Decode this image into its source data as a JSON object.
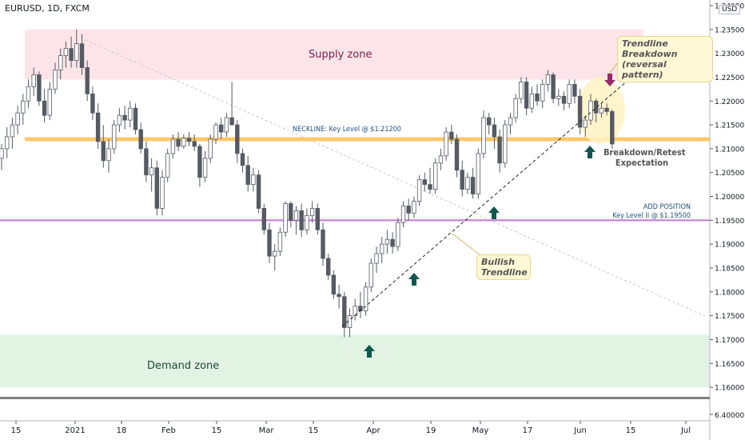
{
  "header": {
    "symbol": "EURUSD, 1D, FXCM",
    "currency": "USD"
  },
  "colors": {
    "supply_zone": "#fce4e8",
    "demand_zone": "#e2f3e4",
    "neckline": "#ffc76a",
    "add_position_line": "#c277d6",
    "candle": "#555a63",
    "arrow_up": "#10584b",
    "arrow_down": "#9b2c6b",
    "highlight_circle": "#fff3c4"
  },
  "annotations": {
    "supply_zone": "Supply zone",
    "demand_zone": "Demand zone",
    "neckline": "NECKLINE: Key Level @ $1.21200",
    "add_position_1": "ADD POSITION",
    "add_position_2": "Key Level II @ $1.19500",
    "breakdown_1": "Breakdown/Retest",
    "breakdown_2": "Expectation",
    "trendline_breakdown_1": "Trendline Breakdown",
    "trendline_breakdown_2": "(reversal pattern)",
    "bullish_1": "Bullish",
    "bullish_2": "Trendline"
  },
  "chart_data": {
    "type": "candlestick",
    "title": "EURUSD, 1D, FXCM",
    "ylim": [
      1.158,
      1.2405
    ],
    "y_ticks": [
      "1.24000",
      "1.23500",
      "1.23000",
      "1.22500",
      "1.22000",
      "1.21500",
      "1.21000",
      "1.20500",
      "1.20000",
      "1.19500",
      "1.19000",
      "1.18500",
      "1.18000",
      "1.17500",
      "1.17000",
      "1.16500",
      "1.16000"
    ],
    "x_ticks": [
      "15",
      "2021",
      "18",
      "Feb",
      "15",
      "Mar",
      "15",
      "Apr",
      "19",
      "May",
      "17",
      "Jun",
      "15",
      "Jul"
    ],
    "indicator_tick": "6.40000",
    "key_levels": {
      "neckline": 1.212,
      "add_position": 1.195
    },
    "zones": {
      "supply": [
        1.2245,
        1.235
      ],
      "demand": [
        1.16,
        1.171
      ]
    },
    "candles": [
      {
        "o": 1.208,
        "h": 1.211,
        "l": 1.2055,
        "c": 1.21
      },
      {
        "o": 1.21,
        "h": 1.2145,
        "l": 1.208,
        "c": 1.2125
      },
      {
        "o": 1.2125,
        "h": 1.2165,
        "l": 1.21,
        "c": 1.215
      },
      {
        "o": 1.215,
        "h": 1.219,
        "l": 1.213,
        "c": 1.2175
      },
      {
        "o": 1.2175,
        "h": 1.2215,
        "l": 1.215,
        "c": 1.22
      },
      {
        "o": 1.22,
        "h": 1.2245,
        "l": 1.2185,
        "c": 1.223
      },
      {
        "o": 1.223,
        "h": 1.227,
        "l": 1.221,
        "c": 1.2255
      },
      {
        "o": 1.2255,
        "h": 1.2262,
        "l": 1.219,
        "c": 1.22
      },
      {
        "o": 1.22,
        "h": 1.2225,
        "l": 1.2155,
        "c": 1.217
      },
      {
        "o": 1.217,
        "h": 1.224,
        "l": 1.216,
        "c": 1.2225
      },
      {
        "o": 1.2225,
        "h": 1.228,
        "l": 1.2215,
        "c": 1.2265
      },
      {
        "o": 1.2265,
        "h": 1.231,
        "l": 1.2245,
        "c": 1.2295
      },
      {
        "o": 1.2295,
        "h": 1.2325,
        "l": 1.227,
        "c": 1.231
      },
      {
        "o": 1.231,
        "h": 1.2335,
        "l": 1.227,
        "c": 1.2285
      },
      {
        "o": 1.2285,
        "h": 1.235,
        "l": 1.227,
        "c": 1.232
      },
      {
        "o": 1.232,
        "h": 1.234,
        "l": 1.2255,
        "c": 1.227
      },
      {
        "o": 1.227,
        "h": 1.2285,
        "l": 1.22,
        "c": 1.2215
      },
      {
        "o": 1.2215,
        "h": 1.223,
        "l": 1.216,
        "c": 1.2175
      },
      {
        "o": 1.2175,
        "h": 1.2195,
        "l": 1.21,
        "c": 1.2115
      },
      {
        "o": 1.2115,
        "h": 1.215,
        "l": 1.206,
        "c": 1.2075
      },
      {
        "o": 1.2075,
        "h": 1.212,
        "l": 1.205,
        "c": 1.21
      },
      {
        "o": 1.21,
        "h": 1.216,
        "l": 1.209,
        "c": 1.215
      },
      {
        "o": 1.215,
        "h": 1.2185,
        "l": 1.2135,
        "c": 1.217
      },
      {
        "o": 1.217,
        "h": 1.219,
        "l": 1.214,
        "c": 1.216
      },
      {
        "o": 1.216,
        "h": 1.22,
        "l": 1.2145,
        "c": 1.2185
      },
      {
        "o": 1.2185,
        "h": 1.2195,
        "l": 1.213,
        "c": 1.214
      },
      {
        "o": 1.214,
        "h": 1.2155,
        "l": 1.209,
        "c": 1.21
      },
      {
        "o": 1.21,
        "h": 1.2115,
        "l": 1.203,
        "c": 1.2045
      },
      {
        "o": 1.2045,
        "h": 1.208,
        "l": 1.201,
        "c": 1.206
      },
      {
        "o": 1.206,
        "h": 1.2075,
        "l": 1.196,
        "c": 1.1975
      },
      {
        "o": 1.1975,
        "h": 1.2055,
        "l": 1.196,
        "c": 1.204
      },
      {
        "o": 1.204,
        "h": 1.21,
        "l": 1.203,
        "c": 1.209
      },
      {
        "o": 1.209,
        "h": 1.213,
        "l": 1.208,
        "c": 1.212
      },
      {
        "o": 1.212,
        "h": 1.2135,
        "l": 1.2095,
        "c": 1.2105
      },
      {
        "o": 1.2105,
        "h": 1.213,
        "l": 1.21,
        "c": 1.2122
      },
      {
        "o": 1.2122,
        "h": 1.2135,
        "l": 1.2105,
        "c": 1.2115
      },
      {
        "o": 1.2115,
        "h": 1.213,
        "l": 1.2095,
        "c": 1.2105
      },
      {
        "o": 1.2105,
        "h": 1.211,
        "l": 1.202,
        "c": 1.204
      },
      {
        "o": 1.204,
        "h": 1.2095,
        "l": 1.203,
        "c": 1.208
      },
      {
        "o": 1.208,
        "h": 1.213,
        "l": 1.207,
        "c": 1.212
      },
      {
        "o": 1.212,
        "h": 1.2155,
        "l": 1.211,
        "c": 1.215
      },
      {
        "o": 1.215,
        "h": 1.2165,
        "l": 1.212,
        "c": 1.2135
      },
      {
        "o": 1.2135,
        "h": 1.2175,
        "l": 1.2125,
        "c": 1.2165
      },
      {
        "o": 1.2165,
        "h": 1.224,
        "l": 1.215,
        "c": 1.215
      },
      {
        "o": 1.215,
        "h": 1.216,
        "l": 1.207,
        "c": 1.209
      },
      {
        "o": 1.209,
        "h": 1.21,
        "l": 1.205,
        "c": 1.2065
      },
      {
        "o": 1.2065,
        "h": 1.2085,
        "l": 1.201,
        "c": 1.2025
      },
      {
        "o": 1.2025,
        "h": 1.206,
        "l": 1.201,
        "c": 1.2045
      },
      {
        "o": 1.2045,
        "h": 1.2055,
        "l": 1.1965,
        "c": 1.1975
      },
      {
        "o": 1.1975,
        "h": 1.1985,
        "l": 1.192,
        "c": 1.193
      },
      {
        "o": 1.193,
        "h": 1.1945,
        "l": 1.186,
        "c": 1.1875
      },
      {
        "o": 1.1875,
        "h": 1.19,
        "l": 1.1845,
        "c": 1.1885
      },
      {
        "o": 1.1885,
        "h": 1.1935,
        "l": 1.1875,
        "c": 1.1925
      },
      {
        "o": 1.1925,
        "h": 1.199,
        "l": 1.1915,
        "c": 1.1985
      },
      {
        "o": 1.1985,
        "h": 1.199,
        "l": 1.1935,
        "c": 1.195
      },
      {
        "o": 1.195,
        "h": 1.198,
        "l": 1.192,
        "c": 1.197
      },
      {
        "o": 1.197,
        "h": 1.1985,
        "l": 1.1915,
        "c": 1.193
      },
      {
        "o": 1.193,
        "h": 1.1975,
        "l": 1.192,
        "c": 1.196
      },
      {
        "o": 1.196,
        "h": 1.199,
        "l": 1.1945,
        "c": 1.1975
      },
      {
        "o": 1.1975,
        "h": 1.1985,
        "l": 1.192,
        "c": 1.193
      },
      {
        "o": 1.193,
        "h": 1.1945,
        "l": 1.1855,
        "c": 1.187
      },
      {
        "o": 1.187,
        "h": 1.188,
        "l": 1.1825,
        "c": 1.1835
      },
      {
        "o": 1.1835,
        "h": 1.1845,
        "l": 1.1785,
        "c": 1.1795
      },
      {
        "o": 1.1795,
        "h": 1.1815,
        "l": 1.1765,
        "c": 1.179
      },
      {
        "o": 1.179,
        "h": 1.18,
        "l": 1.1705,
        "c": 1.1725
      },
      {
        "o": 1.1725,
        "h": 1.1765,
        "l": 1.1705,
        "c": 1.175
      },
      {
        "o": 1.175,
        "h": 1.1785,
        "l": 1.174,
        "c": 1.177
      },
      {
        "o": 1.177,
        "h": 1.18,
        "l": 1.1745,
        "c": 1.176
      },
      {
        "o": 1.176,
        "h": 1.182,
        "l": 1.175,
        "c": 1.181
      },
      {
        "o": 1.181,
        "h": 1.187,
        "l": 1.18,
        "c": 1.186
      },
      {
        "o": 1.186,
        "h": 1.1895,
        "l": 1.184,
        "c": 1.188
      },
      {
        "o": 1.188,
        "h": 1.1915,
        "l": 1.186,
        "c": 1.19
      },
      {
        "o": 1.19,
        "h": 1.193,
        "l": 1.188,
        "c": 1.191
      },
      {
        "o": 1.191,
        "h": 1.1925,
        "l": 1.188,
        "c": 1.1895
      },
      {
        "o": 1.1895,
        "h": 1.1955,
        "l": 1.1885,
        "c": 1.1945
      },
      {
        "o": 1.1945,
        "h": 1.199,
        "l": 1.1935,
        "c": 1.198
      },
      {
        "o": 1.198,
        "h": 1.1995,
        "l": 1.195,
        "c": 1.1965
      },
      {
        "o": 1.1965,
        "h": 1.2,
        "l": 1.1955,
        "c": 1.199
      },
      {
        "o": 1.199,
        "h": 1.2045,
        "l": 1.198,
        "c": 1.2035
      },
      {
        "o": 1.2035,
        "h": 1.205,
        "l": 1.201,
        "c": 1.2025
      },
      {
        "o": 1.2025,
        "h": 1.206,
        "l": 1.2005,
        "c": 1.2015
      },
      {
        "o": 1.2015,
        "h": 1.208,
        "l": 1.2005,
        "c": 1.207
      },
      {
        "o": 1.207,
        "h": 1.21,
        "l": 1.2055,
        "c": 1.2085
      },
      {
        "o": 1.2085,
        "h": 1.2145,
        "l": 1.2075,
        "c": 1.2135
      },
      {
        "o": 1.2135,
        "h": 1.215,
        "l": 1.211,
        "c": 1.212
      },
      {
        "o": 1.212,
        "h": 1.213,
        "l": 1.204,
        "c": 1.2055
      },
      {
        "o": 1.2055,
        "h": 1.2075,
        "l": 1.2,
        "c": 1.2015
      },
      {
        "o": 1.2015,
        "h": 1.205,
        "l": 1.2005,
        "c": 1.204
      },
      {
        "o": 1.204,
        "h": 1.206,
        "l": 1.1995,
        "c": 1.2005
      },
      {
        "o": 1.2005,
        "h": 1.21,
        "l": 1.1995,
        "c": 1.209
      },
      {
        "o": 1.209,
        "h": 1.218,
        "l": 1.208,
        "c": 1.2165
      },
      {
        "o": 1.2165,
        "h": 1.2175,
        "l": 1.213,
        "c": 1.215
      },
      {
        "o": 1.215,
        "h": 1.2165,
        "l": 1.21,
        "c": 1.2125
      },
      {
        "o": 1.2125,
        "h": 1.214,
        "l": 1.205,
        "c": 1.207
      },
      {
        "o": 1.207,
        "h": 1.216,
        "l": 1.206,
        "c": 1.215
      },
      {
        "o": 1.215,
        "h": 1.2175,
        "l": 1.213,
        "c": 1.2165
      },
      {
        "o": 1.2165,
        "h": 1.2215,
        "l": 1.2155,
        "c": 1.2205
      },
      {
        "o": 1.2205,
        "h": 1.225,
        "l": 1.2195,
        "c": 1.224
      },
      {
        "o": 1.224,
        "h": 1.225,
        "l": 1.217,
        "c": 1.2185
      },
      {
        "o": 1.2185,
        "h": 1.223,
        "l": 1.2175,
        "c": 1.2215
      },
      {
        "o": 1.2215,
        "h": 1.2235,
        "l": 1.219,
        "c": 1.22
      },
      {
        "o": 1.22,
        "h": 1.2245,
        "l": 1.2185,
        "c": 1.2235
      },
      {
        "o": 1.2235,
        "h": 1.2265,
        "l": 1.222,
        "c": 1.2255
      },
      {
        "o": 1.2255,
        "h": 1.226,
        "l": 1.2195,
        "c": 1.2205
      },
      {
        "o": 1.2205,
        "h": 1.2225,
        "l": 1.219,
        "c": 1.221
      },
      {
        "o": 1.221,
        "h": 1.222,
        "l": 1.218,
        "c": 1.2195
      },
      {
        "o": 1.2195,
        "h": 1.2245,
        "l": 1.2185,
        "c": 1.2235
      },
      {
        "o": 1.2235,
        "h": 1.2245,
        "l": 1.2195,
        "c": 1.221
      },
      {
        "o": 1.221,
        "h": 1.2225,
        "l": 1.213,
        "c": 1.2145
      },
      {
        "o": 1.2145,
        "h": 1.217,
        "l": 1.2125,
        "c": 1.216
      },
      {
        "o": 1.216,
        "h": 1.2215,
        "l": 1.215,
        "c": 1.22
      },
      {
        "o": 1.22,
        "h": 1.2205,
        "l": 1.2155,
        "c": 1.2175
      },
      {
        "o": 1.2175,
        "h": 1.2195,
        "l": 1.2165,
        "c": 1.2185
      },
      {
        "o": 1.2185,
        "h": 1.2195,
        "l": 1.217,
        "c": 1.2178
      },
      {
        "o": 1.2178,
        "h": 1.2182,
        "l": 1.21,
        "c": 1.211
      }
    ]
  }
}
